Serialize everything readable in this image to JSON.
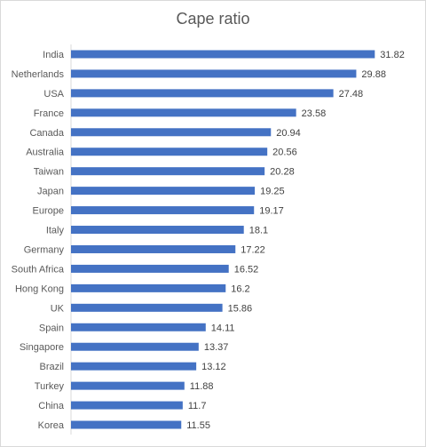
{
  "chart_data": {
    "type": "bar",
    "orientation": "horizontal",
    "title": "Cape ratio",
    "xlabel": "",
    "ylabel": "",
    "grid": false,
    "legend": "none",
    "bar_color": "#4472C4",
    "xlim": [
      0,
      33
    ],
    "categories": [
      "India",
      "Netherlands",
      "USA",
      "France",
      "Canada",
      "Australia",
      "Taiwan",
      "Japan",
      "Europe",
      "Italy",
      "Germany",
      "South Africa",
      "Hong Kong",
      "UK",
      "Spain",
      "Singapore",
      "Brazil",
      "Turkey",
      "China",
      "Korea"
    ],
    "values": [
      31.82,
      29.88,
      27.48,
      23.58,
      20.94,
      20.56,
      20.28,
      19.25,
      19.17,
      18.1,
      17.22,
      16.52,
      16.2,
      15.86,
      14.11,
      13.37,
      13.12,
      11.88,
      11.7,
      11.55
    ],
    "data_labels": [
      "31.82",
      "29.88",
      "27.48",
      "23.58",
      "20.94",
      "20.56",
      "20.28",
      "19.25",
      "19.17",
      "18.1",
      "17.22",
      "16.52",
      "16.2",
      "15.86",
      "14.11",
      "13.37",
      "13.12",
      "11.88",
      "11.7",
      "11.55"
    ]
  }
}
